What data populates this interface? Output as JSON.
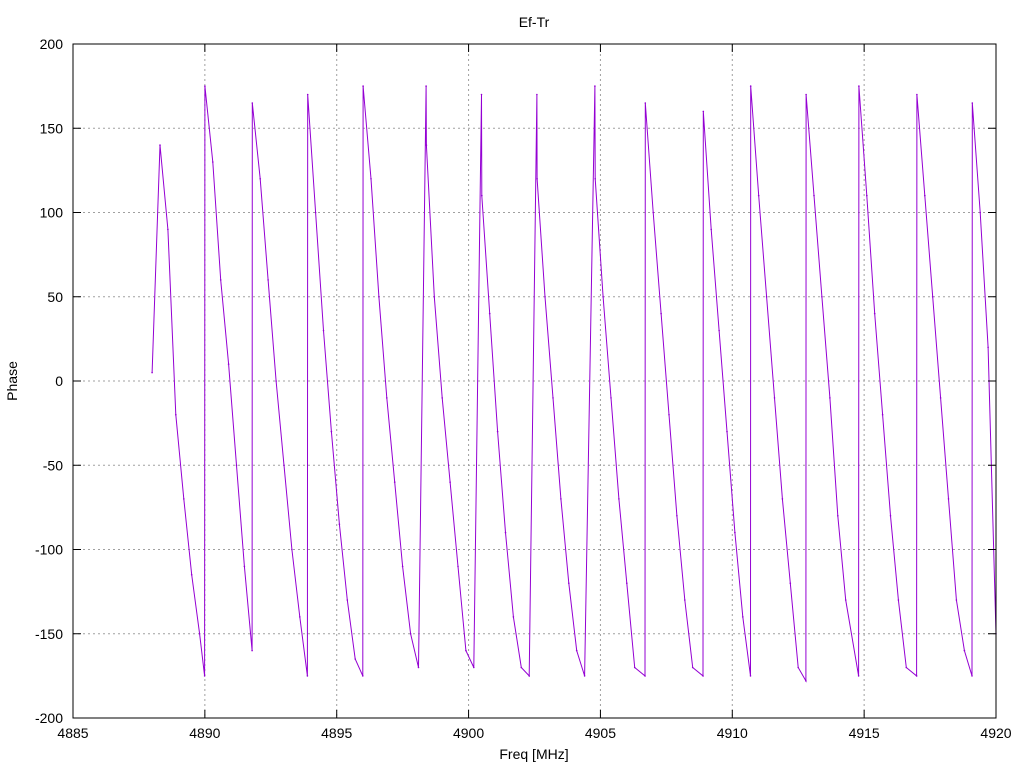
{
  "chart_data": {
    "type": "line",
    "title": "Ef-Tr",
    "xlabel": "Freq [MHz]",
    "ylabel": "Phase",
    "xlim": [
      4885,
      4920
    ],
    "ylim": [
      -200,
      200
    ],
    "xticks": [
      4885,
      4890,
      4895,
      4900,
      4905,
      4910,
      4915,
      4920
    ],
    "yticks": [
      -200,
      -150,
      -100,
      -50,
      0,
      50,
      100,
      150,
      200
    ],
    "grid": true,
    "series": [
      {
        "color": "#9400d3",
        "x": [
          4888.0,
          4888.3,
          4888.6,
          4888.9,
          4889.2,
          4889.5,
          4889.8,
          4889.99,
          4890.0,
          4890.3,
          4890.6,
          4890.9,
          4891.2,
          4891.5,
          4891.79,
          4891.8,
          4892.1,
          4892.4,
          4892.7,
          4893.0,
          4893.3,
          4893.6,
          4893.89,
          4893.9,
          4894.2,
          4894.5,
          4894.8,
          4895.1,
          4895.4,
          4895.7,
          4895.99,
          4896.0,
          4896.3,
          4896.6,
          4896.9,
          4897.2,
          4897.5,
          4897.8,
          4898.1,
          4898.39,
          4898.4,
          4898.7,
          4899.0,
          4899.3,
          4899.6,
          4899.9,
          4900.2,
          4900.49,
          4900.5,
          4900.8,
          4901.1,
          4901.4,
          4901.7,
          4902.0,
          4902.3,
          4902.59,
          4902.6,
          4902.9,
          4903.2,
          4903.5,
          4903.8,
          4904.1,
          4904.4,
          4904.79,
          4904.8,
          4905.1,
          4905.4,
          4905.7,
          4906.0,
          4906.3,
          4906.69,
          4906.7,
          4907.0,
          4907.3,
          4907.6,
          4907.9,
          4908.2,
          4908.5,
          4908.89,
          4908.9,
          4909.2,
          4909.5,
          4909.8,
          4910.1,
          4910.4,
          4910.69,
          4910.7,
          4911.0,
          4911.3,
          4911.6,
          4911.9,
          4912.2,
          4912.5,
          4912.79,
          4912.8,
          4913.1,
          4913.4,
          4913.7,
          4914.0,
          4914.3,
          4914.79,
          4914.8,
          4915.1,
          4915.4,
          4915.7,
          4916.0,
          4916.3,
          4916.6,
          4916.99,
          4917.0,
          4917.3,
          4917.6,
          4917.9,
          4918.2,
          4918.5,
          4918.8,
          4919.09,
          4919.1,
          4919.4,
          4919.7,
          4920.0
        ],
        "y": [
          5,
          140,
          90,
          -20,
          -70,
          -115,
          -150,
          -175,
          175,
          130,
          60,
          10,
          -50,
          -110,
          -160,
          165,
          120,
          60,
          0,
          -50,
          -100,
          -140,
          -175,
          170,
          100,
          30,
          -30,
          -85,
          -130,
          -165,
          -175,
          175,
          120,
          50,
          -10,
          -60,
          -110,
          -150,
          -170,
          175,
          140,
          50,
          -10,
          -60,
          -110,
          -160,
          -170,
          170,
          110,
          40,
          -30,
          -90,
          -140,
          -170,
          -175,
          170,
          120,
          50,
          -10,
          -70,
          -120,
          -160,
          -175,
          175,
          120,
          50,
          -10,
          -70,
          -120,
          -170,
          -175,
          165,
          100,
          40,
          -20,
          -80,
          -130,
          -170,
          -175,
          160,
          90,
          30,
          -30,
          -90,
          -140,
          -175,
          175,
          110,
          50,
          -10,
          -70,
          -120,
          -170,
          -178,
          170,
          110,
          50,
          -10,
          -80,
          -130,
          -175,
          175,
          110,
          40,
          -20,
          -80,
          -130,
          -170,
          -175,
          170,
          110,
          50,
          -10,
          -70,
          -130,
          -160,
          -175,
          165,
          100,
          20,
          -150
        ]
      }
    ]
  }
}
